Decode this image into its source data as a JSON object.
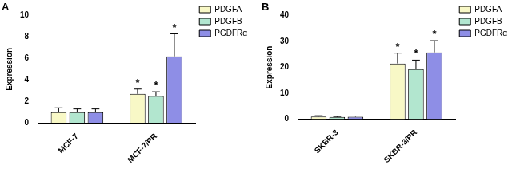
{
  "chart_data": [
    {
      "type": "bar",
      "title": "A",
      "ylabel": "Expression",
      "categories": [
        "MCF-7",
        "MCF-7/PR"
      ],
      "series": [
        {
          "name": "PDGFA",
          "color": "#f8f8c6",
          "values": [
            1,
            2.7
          ],
          "errors": [
            0.4,
            0.45
          ],
          "significance": [
            null,
            "*"
          ]
        },
        {
          "name": "PDGFB",
          "color": "#b2e6cf",
          "values": [
            1,
            2.5
          ],
          "errors": [
            0.3,
            0.4
          ],
          "significance": [
            null,
            "*"
          ]
        },
        {
          "name": "PGDFRα",
          "color": "#8e8ee6",
          "values": [
            1,
            6.2
          ],
          "errors": [
            0.3,
            2.1
          ],
          "significance": [
            null,
            "*"
          ]
        }
      ],
      "ylim": [
        0,
        10
      ],
      "yticks": [
        0,
        2,
        4,
        6,
        8,
        10
      ],
      "grid": false,
      "legend": "upper right"
    },
    {
      "type": "bar",
      "title": "B",
      "ylabel": "Expression",
      "categories": [
        "SKBR-3",
        "SKBR-3/PR"
      ],
      "series": [
        {
          "name": "PDGFA",
          "color": "#f8f8c6",
          "values": [
            1,
            21.5
          ],
          "errors": [
            0.3,
            4
          ],
          "significance": [
            null,
            "*"
          ]
        },
        {
          "name": "PDGFB",
          "color": "#b2e6cf",
          "values": [
            0.8,
            19.3
          ],
          "errors": [
            0.2,
            3.5
          ],
          "significance": [
            null,
            "*"
          ]
        },
        {
          "name": "PGDFRα",
          "color": "#8e8ee6",
          "values": [
            0.9,
            25.8
          ],
          "errors": [
            0.3,
            4.5
          ],
          "significance": [
            null,
            "*"
          ]
        }
      ],
      "ylim": [
        0,
        40
      ],
      "yticks": [
        0,
        10,
        20,
        30,
        40
      ],
      "grid": false,
      "legend": "upper right"
    }
  ]
}
